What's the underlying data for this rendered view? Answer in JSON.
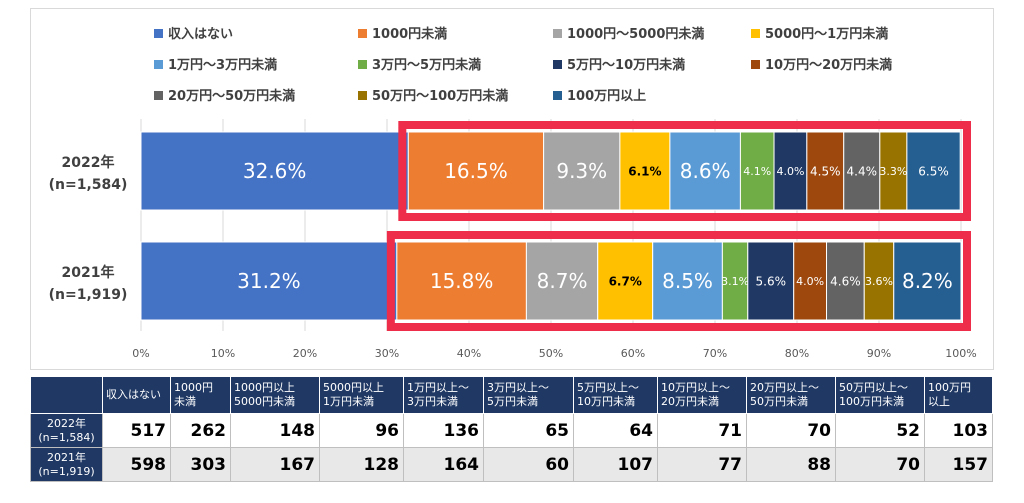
{
  "chart_data": {
    "type": "bar",
    "orientation": "horizontal",
    "stacked": true,
    "percent_stacked": true,
    "xlim": [
      0,
      100
    ],
    "x_ticks": [
      "0%",
      "10%",
      "20%",
      "30%",
      "40%",
      "50%",
      "60%",
      "70%",
      "80%",
      "90%",
      "100%"
    ],
    "grid": true,
    "legend_position": "top",
    "categories": [
      "2022年\n(n=1,584)",
      "2021年\n(n=1,919)"
    ],
    "series": [
      {
        "name": "収入はない",
        "color": "#4472c4",
        "values": [
          32.6,
          31.2
        ],
        "labels": [
          "32.6%",
          "31.2%"
        ]
      },
      {
        "name": "1000円未満",
        "color": "#ed7d31",
        "values": [
          16.5,
          15.8
        ],
        "labels": [
          "16.5%",
          "15.8%"
        ]
      },
      {
        "name": "1000円～5000円未満",
        "color": "#a5a5a5",
        "values": [
          9.3,
          8.7
        ],
        "labels": [
          "9.3%",
          "8.7%"
        ]
      },
      {
        "name": "5000円～1万円未満",
        "color": "#ffc000",
        "values": [
          6.1,
          6.7
        ],
        "labels": [
          "6.1%",
          "6.7%"
        ]
      },
      {
        "name": "1万円～3万円未満",
        "color": "#5b9bd5",
        "values": [
          8.6,
          8.5
        ],
        "labels": [
          "8.6%",
          "8.5%"
        ]
      },
      {
        "name": "3万円～5万円未満",
        "color": "#70ad47",
        "values": [
          4.1,
          3.1
        ],
        "labels": [
          "4.1%",
          "3.1%"
        ]
      },
      {
        "name": "5万円～10万円未満",
        "color": "#203864",
        "values": [
          4.0,
          5.6
        ],
        "labels": [
          "4.0%",
          "5.6%"
        ]
      },
      {
        "name": "10万円～20万円未満",
        "color": "#9e480e",
        "values": [
          4.5,
          4.0
        ],
        "labels": [
          "4.5%",
          "4.0%"
        ]
      },
      {
        "name": "20万円～50万円未満",
        "color": "#636363",
        "values": [
          4.4,
          4.6
        ],
        "labels": [
          "4.4%",
          "4.6%"
        ]
      },
      {
        "name": "50万円～100万円未満",
        "color": "#997300",
        "values": [
          3.3,
          3.6
        ],
        "labels": [
          "3.3%",
          "3.6%"
        ]
      },
      {
        "name": "100万円以上",
        "color": "#255e91",
        "values": [
          6.5,
          8.2
        ],
        "labels": [
          "6.5%",
          "8.2%"
        ]
      }
    ],
    "highlight_color": "#ee2d4b",
    "highlight_from_series": 1
  },
  "table": {
    "columns": [
      "",
      "収入はない",
      "1000円\n未満",
      "1000円以上\n5000円未満",
      "5000円以上\n1万円未満",
      "1万円以上～\n3万円未満",
      "3万円以上～\n5万円未満",
      "5万円以上～\n10万円未満",
      "10万円以上～\n20万円未満",
      "20万円以上～\n50万円未満",
      "50万円以上～\n100万円未満",
      "100万円\n以上"
    ],
    "rows": [
      {
        "label": "2022年\n(n=1,584)",
        "values": [
          517,
          262,
          148,
          96,
          136,
          65,
          64,
          71,
          70,
          52,
          103
        ]
      },
      {
        "label": "2021年\n(n=1,919)",
        "values": [
          598,
          303,
          167,
          128,
          164,
          60,
          107,
          77,
          88,
          70,
          157
        ]
      }
    ],
    "header_color": "#1f3864"
  }
}
